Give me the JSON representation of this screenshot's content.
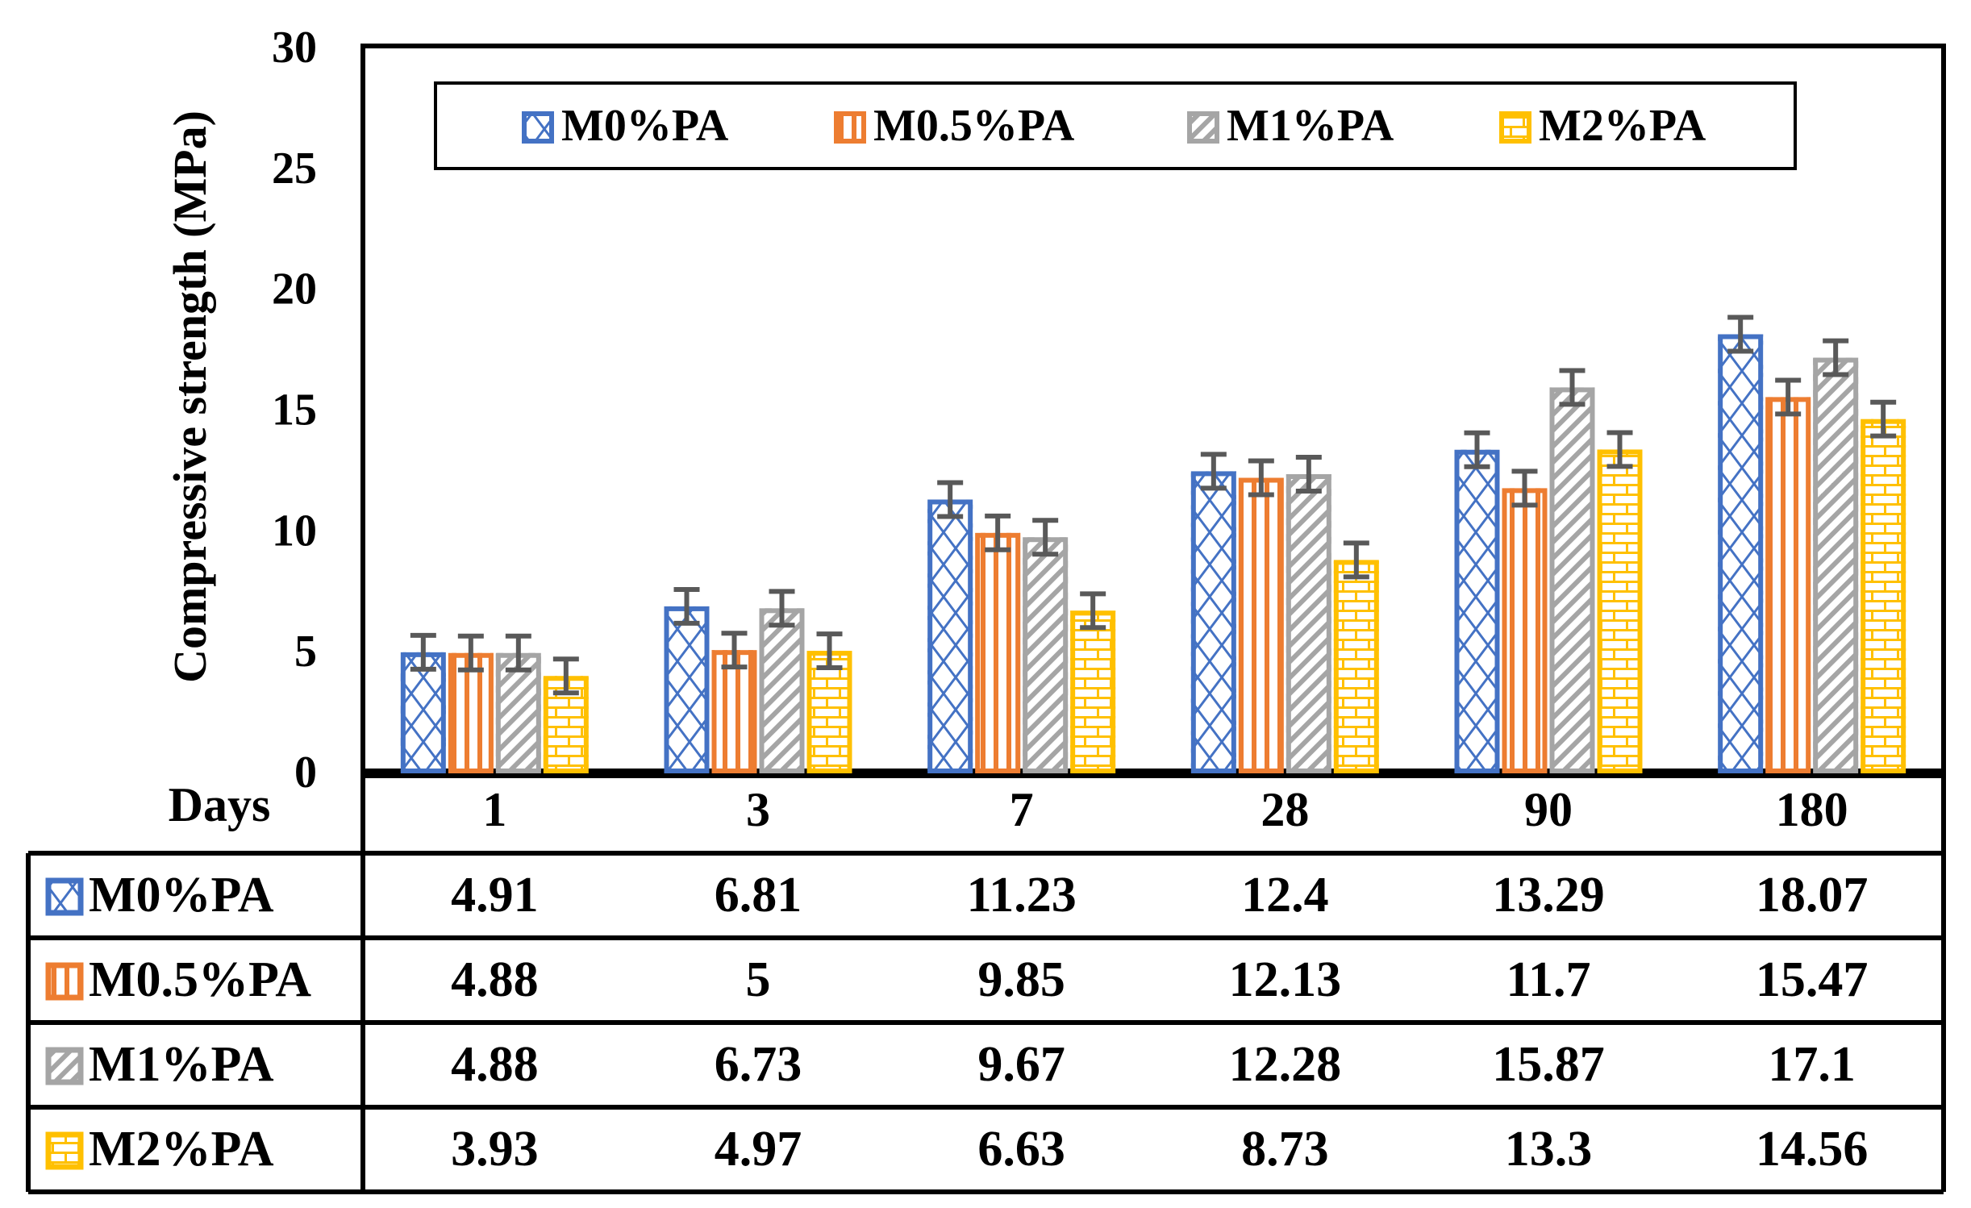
{
  "chart_data": {
    "type": "bar",
    "title": "",
    "xlabel": "Days",
    "ylabel": "Compressive strength (MPa)",
    "ylim": [
      0,
      30
    ],
    "yticks": [
      0,
      5,
      10,
      15,
      20,
      25,
      30
    ],
    "categories": [
      "1",
      "3",
      "7",
      "28",
      "90",
      "180"
    ],
    "legend_position": "top",
    "series": [
      {
        "name": "M0%PA",
        "color": "#4472C4",
        "pattern": "diamond-lattice",
        "values": [
          4.91,
          6.81,
          11.23,
          12.4,
          13.29,
          18.07
        ],
        "display": [
          "4.91",
          "6.81",
          "11.23",
          "12.4",
          "13.29",
          "18.07"
        ]
      },
      {
        "name": "M0.5%PA",
        "color": "#ED7D31",
        "pattern": "vertical-stripes",
        "values": [
          4.88,
          5,
          9.85,
          12.13,
          11.7,
          15.47
        ],
        "display": [
          "4.88",
          "5",
          "9.85",
          "12.13",
          "11.7",
          "15.47"
        ]
      },
      {
        "name": "M1%PA",
        "color": "#A5A5A5",
        "pattern": "diagonal-stripes",
        "values": [
          4.88,
          6.73,
          9.67,
          12.28,
          15.87,
          17.1
        ],
        "display": [
          "4.88",
          "6.73",
          "9.67",
          "12.28",
          "15.87",
          "17.1"
        ]
      },
      {
        "name": "M2%PA",
        "color": "#FFC000",
        "pattern": "brick",
        "values": [
          3.93,
          4.97,
          6.63,
          8.73,
          13.3,
          14.56
        ],
        "display": [
          "3.93",
          "4.97",
          "6.63",
          "8.73",
          "13.3",
          "14.56"
        ]
      }
    ],
    "error_bar_color": "#595959",
    "error_magnitude": 0.7
  }
}
